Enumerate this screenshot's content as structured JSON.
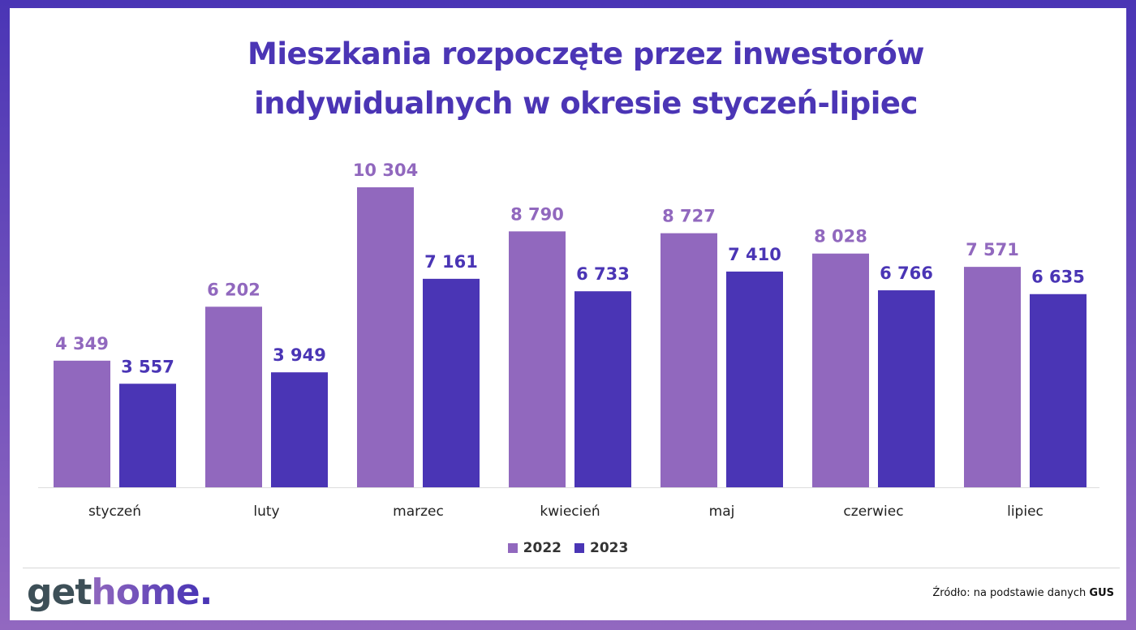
{
  "chart_data": {
    "type": "bar",
    "title": "Mieszkania rozpoczęte przez inwestorów indywidualnych w okresie styczeń-lipiec",
    "categories": [
      "styczeń",
      "luty",
      "marzec",
      "kwiecień",
      "maj",
      "czerwiec",
      "lipiec"
    ],
    "series": [
      {
        "name": "2022",
        "color": "#9168be",
        "values": [
          4349,
          6202,
          10304,
          8790,
          8727,
          8028,
          7571
        ],
        "labels": [
          "4 349",
          "6 202",
          "10 304",
          "8 790",
          "8 727",
          "8 028",
          "7 571"
        ]
      },
      {
        "name": "2023",
        "color": "#4a35b5",
        "values": [
          3557,
          3949,
          7161,
          6733,
          7410,
          6766,
          6635
        ],
        "labels": [
          "3 557",
          "3 949",
          "7 161",
          "6 733",
          "7 410",
          "6 766",
          "6 635"
        ]
      }
    ],
    "ylim": [
      0,
      10304
    ],
    "grid": false,
    "legend_position": "bottom"
  },
  "title_line1": "Mieszkania rozpoczęte przez inwestorów",
  "title_line2": "indywidualnych w okresie styczeń-lipiec",
  "logo": {
    "part1": "get",
    "part2": "home",
    "part3": "."
  },
  "source": {
    "prefix": "Źródło: na podstawie danych ",
    "bold": "GUS"
  }
}
